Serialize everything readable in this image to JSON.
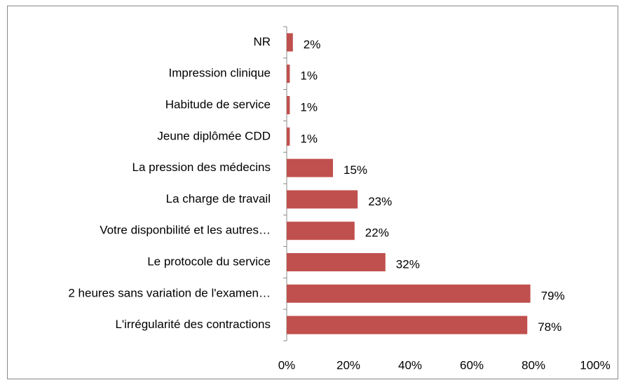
{
  "chart_data": {
    "type": "hbar",
    "categories": [
      "NR",
      "Impression clinique",
      "Habitude de service",
      "Jeune diplômée CDD",
      "La pression des médecins",
      "La charge de travail",
      "Votre disponbilité et les autres…",
      "Le protocole du service",
      "2 heures sans variation de l'examen…",
      "L'irrégularité des contractions"
    ],
    "values": [
      2,
      1,
      1,
      1,
      15,
      23,
      22,
      32,
      79,
      78
    ],
    "value_labels": [
      "2%",
      "1%",
      "1%",
      "1%",
      "15%",
      "23%",
      "22%",
      "32%",
      "79%",
      "78%"
    ],
    "color": "#c0504d",
    "xlim": [
      0,
      100
    ],
    "xticks": [
      {
        "value": 0,
        "label": "0%"
      },
      {
        "value": 20,
        "label": "20%"
      },
      {
        "value": 40,
        "label": "40%"
      },
      {
        "value": 60,
        "label": "60%"
      },
      {
        "value": 80,
        "label": "80%"
      },
      {
        "value": 100,
        "label": "100%"
      }
    ],
    "grid": false
  }
}
